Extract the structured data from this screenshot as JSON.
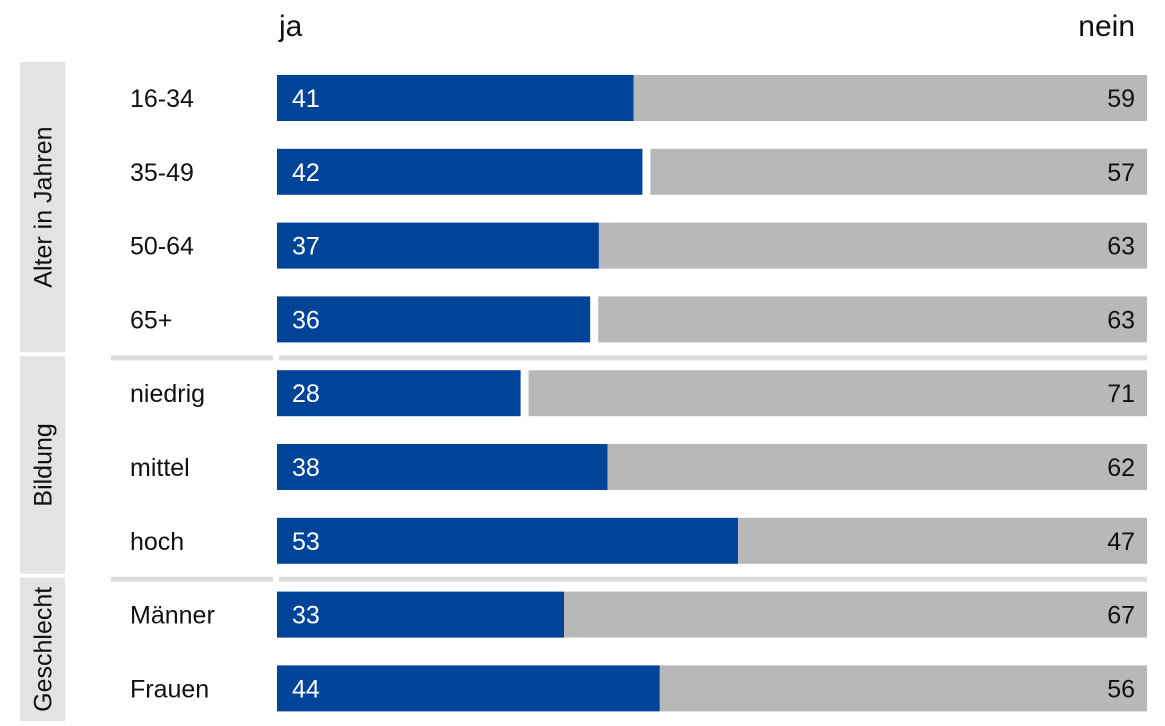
{
  "chart_data": {
    "type": "bar",
    "stacked": true,
    "orientation": "horizontal",
    "series": [
      {
        "name": "ja",
        "values": [
          41,
          42,
          37,
          36,
          28,
          38,
          53,
          33,
          44
        ],
        "color": "#00449a"
      },
      {
        "name": "nein",
        "values": [
          59,
          57,
          63,
          63,
          71,
          62,
          47,
          67,
          56
        ],
        "color": "#b8b8b8"
      }
    ],
    "categories": [
      "16-34",
      "35-49",
      "50-64",
      "65+",
      "niedrig",
      "mittel",
      "hoch",
      "Männer",
      "Frauen"
    ],
    "groups": [
      {
        "label": "Alter in Jahren",
        "categories": [
          "16-34",
          "35-49",
          "50-64",
          "65+"
        ]
      },
      {
        "label": "Bildung",
        "categories": [
          "niedrig",
          "mittel",
          "hoch"
        ]
      },
      {
        "label": "Geschlecht",
        "categories": [
          "Männer",
          "Frauen"
        ]
      }
    ],
    "xlim": [
      0,
      100
    ],
    "grid": false,
    "legend": "top",
    "group_panel_color": "#e3e3e3",
    "separator_color": "#dddddd",
    "data_label_color_on_ja": "#ffffff",
    "data_label_color_on_nein": "#111111"
  }
}
